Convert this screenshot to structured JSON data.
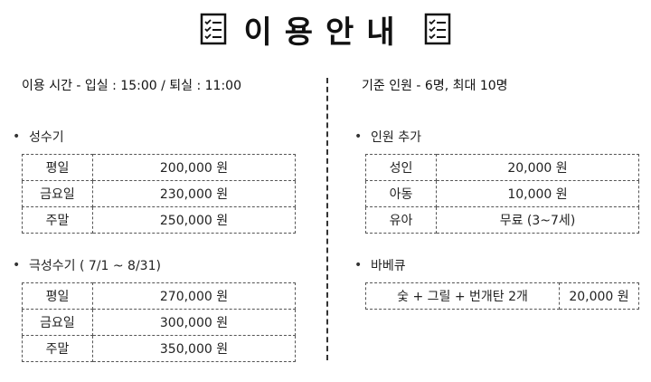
{
  "title": "이용안내",
  "usage": {
    "left": "이용 시간 - 입실 : 15:00 / 퇴실 : 11:00",
    "right": "기준 인원 - 6명, 최대 10명"
  },
  "colors": {
    "peak_highlight": "#f7e08a",
    "super_peak_highlight": "#f9c49a",
    "extra_highlight": "#b9d0ec",
    "bbq_highlight": "#bfe2b5"
  },
  "peak": {
    "label": "성수기",
    "rows": [
      {
        "day": "평일",
        "price": "200,000 원"
      },
      {
        "day": "금요일",
        "price": "230,000 원"
      },
      {
        "day": "주말",
        "price": "250,000 원"
      }
    ]
  },
  "super_peak": {
    "label": "극성수기 ( 7/1 ~ 8/31)",
    "rows": [
      {
        "day": "평일",
        "price": "270,000 원"
      },
      {
        "day": "금요일",
        "price": "300,000 원"
      },
      {
        "day": "주말",
        "price": "350,000 원"
      }
    ]
  },
  "extra_person": {
    "label": "인원 추가",
    "rows": [
      {
        "type": "성인",
        "price": "20,000 원"
      },
      {
        "type": "아동",
        "price": "10,000 원"
      },
      {
        "type": "유아",
        "price": "무료 (3~7세)"
      }
    ]
  },
  "bbq": {
    "label": "바베큐",
    "item": "숯 + 그릴 + 번개탄 2개",
    "price": "20,000 원"
  }
}
